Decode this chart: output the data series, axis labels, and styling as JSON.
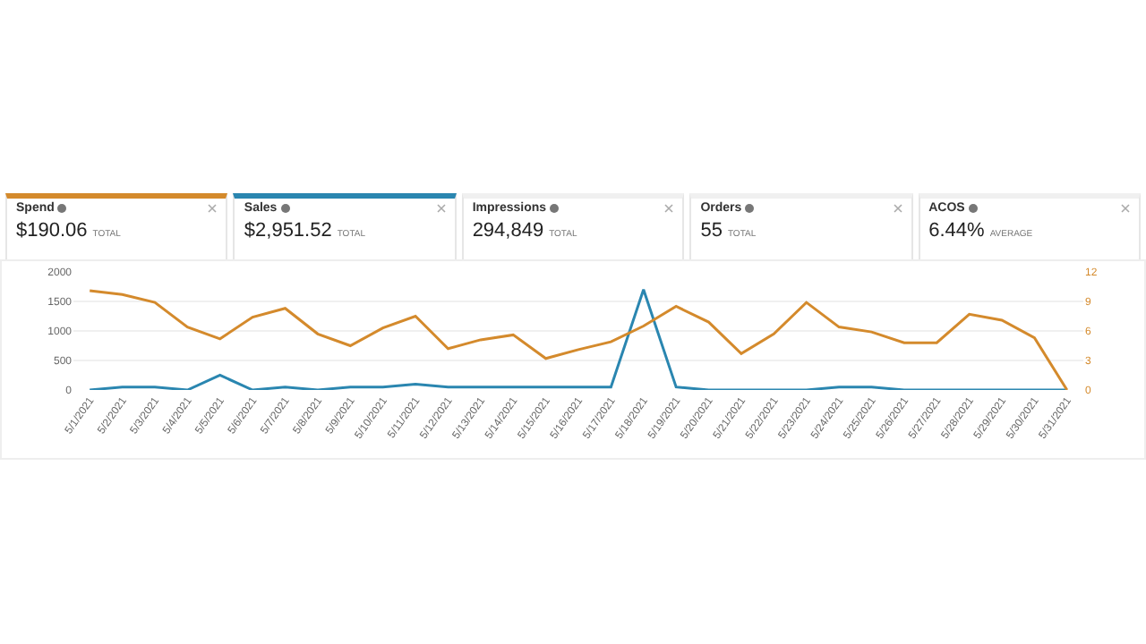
{
  "chart_data": [
    {
      "type": "other",
      "annotations": [
        "Spend",
        "$190.06",
        "TOTAL",
        "Sales",
        "$2,951.52",
        "TOTAL",
        "Impressions",
        "294,849",
        "TOTAL",
        "Orders",
        "55",
        "TOTAL",
        "ACOS",
        "6.44%",
        "AVERAGE"
      ]
    },
    {
      "type": "line",
      "categories": [
        "5/1/2021",
        "5/2/2021",
        "5/3/2021",
        "5/4/2021",
        "5/5/2021",
        "5/6/2021",
        "5/7/2021",
        "5/8/2021",
        "5/9/2021",
        "5/10/2021",
        "5/11/2021",
        "5/12/2021",
        "5/13/2021",
        "5/14/2021",
        "5/15/2021",
        "5/16/2021",
        "5/17/2021",
        "5/18/2021",
        "5/19/2021",
        "5/20/2021",
        "5/21/2021",
        "5/22/2021",
        "5/23/2021",
        "5/24/2021",
        "5/25/2021",
        "5/26/2021",
        "5/27/2021",
        "5/28/2021",
        "5/29/2021",
        "5/30/2021",
        "5/31/2021"
      ],
      "series": [
        {
          "color": "#d48a2c",
          "axis": "y2",
          "values": [
            10.1,
            9.7,
            8.9,
            6.4,
            5.2,
            7.4,
            8.3,
            5.7,
            4.5,
            6.3,
            7.5,
            4.2,
            5.1,
            5.6,
            3.2,
            4.1,
            4.9,
            6.5,
            8.5,
            6.9,
            3.7,
            5.7,
            8.9,
            6.4,
            5.9,
            4.8,
            4.8,
            7.7,
            7.1,
            5.3,
            0
          ]
        },
        {
          "color": "#2a86b0",
          "values": [
            0,
            50,
            50,
            0,
            250,
            0,
            50,
            0,
            50,
            50,
            100,
            50,
            50,
            50,
            50,
            50,
            50,
            1700,
            50,
            0,
            0,
            0,
            0,
            50,
            50,
            0,
            0,
            0,
            0,
            0,
            0
          ]
        }
      ],
      "ylim": [
        0,
        2000
      ],
      "yticks": [
        0,
        500,
        1000,
        1500,
        2000
      ],
      "y2lim": [
        0,
        12
      ],
      "y2ticks": [
        0,
        3,
        6,
        9,
        12
      ],
      "grid": "y",
      "marker": "none",
      "line_style": "solid"
    }
  ]
}
